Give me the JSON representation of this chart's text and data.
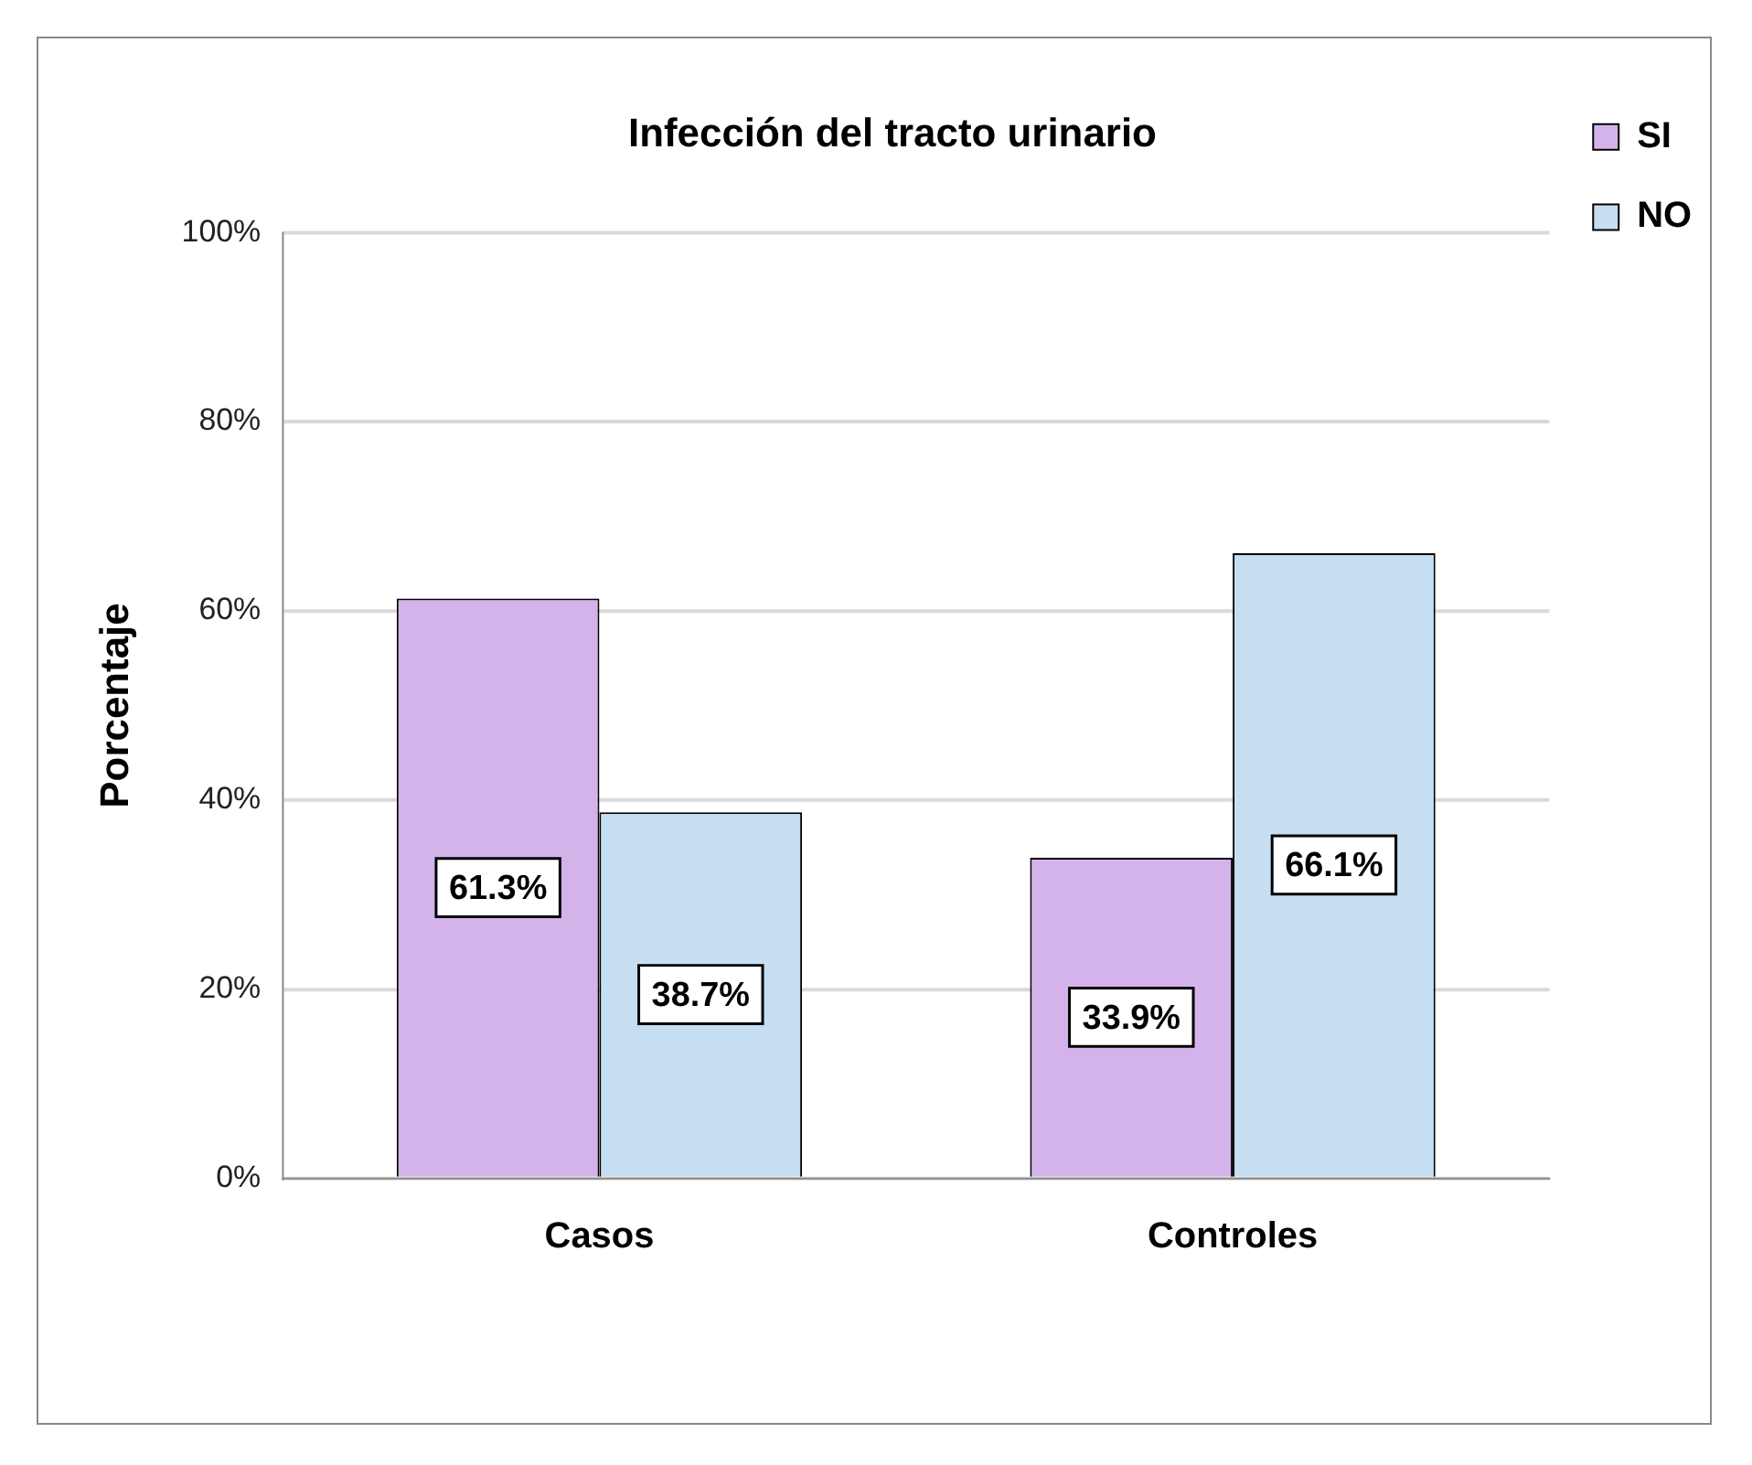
{
  "chart_data": {
    "type": "bar",
    "title": "Infección del tracto urinario",
    "ylabel": "Porcentaje",
    "categories": [
      "Casos",
      "Controles"
    ],
    "series": [
      {
        "name": "SI",
        "color": "#d4b3ea",
        "values": [
          61.3,
          33.9
        ],
        "value_labels": [
          "61.3%",
          "33.9%"
        ]
      },
      {
        "name": "NO",
        "color": "#c6def2",
        "values": [
          38.7,
          66.1
        ],
        "value_labels": [
          "38.7%",
          "66.1%"
        ]
      }
    ],
    "ylim": [
      0,
      100
    ],
    "yticks": [
      {
        "value": 0,
        "label": "0%"
      },
      {
        "value": 20,
        "label": "20%"
      },
      {
        "value": 40,
        "label": "40%"
      },
      {
        "value": 60,
        "label": "60%"
      },
      {
        "value": 80,
        "label": "80%"
      },
      {
        "value": 100,
        "label": "100%"
      }
    ],
    "grid": "y",
    "legend": "top right"
  }
}
